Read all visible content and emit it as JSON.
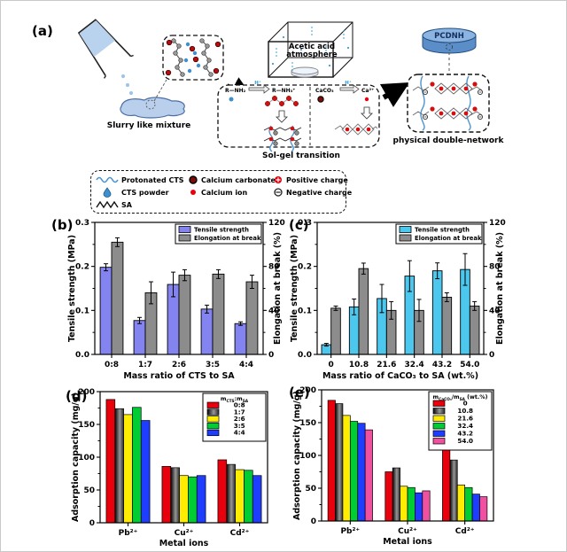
{
  "panels": {
    "a": "(a)",
    "b": "(b)",
    "c": "(c)",
    "d": "(d)",
    "e": "(e)"
  },
  "schematic": {
    "slurry_label": "Slurry like mixture",
    "chamber_label_1": "Acetic acid",
    "chamber_label_2": "atmosphere",
    "solgel_label": "Sol-gel transition",
    "network_label": "physical double-network",
    "disc_label": "PCDNH",
    "reaction1": {
      "reactant": "R—NH₂",
      "condition": "H⁺",
      "product": "R—NH₃⁺"
    },
    "reaction2": {
      "reactant": "CaCO₃",
      "condition": "H⁺",
      "product": "Ca²⁺"
    }
  },
  "legend": {
    "items": [
      {
        "icon": "protonated-cts-wave",
        "label": "Protonated CTS"
      },
      {
        "icon": "cts-powder-droplet",
        "label": "CTS powder"
      },
      {
        "icon": "sa-zigzag",
        "label": "SA"
      },
      {
        "icon": "calcium-carbonate-circle",
        "label": "Calcium carbonate"
      },
      {
        "icon": "calcium-ion-dot",
        "label": "Calcium ion"
      },
      {
        "icon": "positive-charge",
        "label": "Positive charge"
      },
      {
        "icon": "negative-charge",
        "label": "Negative charge"
      }
    ]
  },
  "chart_data": [
    {
      "id": "b",
      "type": "bar-dual",
      "panel": "(b)",
      "categories": [
        "0:8",
        "1:7",
        "2:6",
        "3:5",
        "4:4"
      ],
      "xlabel": "Mass ratio of CTS to SA",
      "left_axis": {
        "label": "Tensile strength (MPa)",
        "range": [
          0,
          0.3
        ],
        "ticks": [
          "0.0",
          "0.1",
          "0.2",
          "0.3"
        ]
      },
      "right_axis": {
        "label": "Elongation at break (%)",
        "range": [
          0,
          120
        ],
        "ticks": [
          "0",
          "40",
          "80",
          "120"
        ]
      },
      "legend_position": "top-right",
      "series": [
        {
          "name": "Tensile strength",
          "axis": "left",
          "color": "#8484f0",
          "values": [
            0.198,
            0.077,
            0.159,
            0.103,
            0.07
          ],
          "errors": [
            0.008,
            0.007,
            0.028,
            0.009,
            0.004
          ]
        },
        {
          "name": "Elongation at break",
          "axis": "right",
          "color": "#8c8c8c",
          "values": [
            102,
            56,
            72,
            73,
            66
          ],
          "errors": [
            4,
            10,
            5,
            4,
            6
          ]
        }
      ]
    },
    {
      "id": "c",
      "type": "bar-dual",
      "panel": "(c)",
      "categories": [
        "0",
        "10.8",
        "21.6",
        "32.4",
        "43.2",
        "54.0"
      ],
      "xlabel": "Mass ratio of CaCO₃ to SA (wt.%)",
      "left_axis": {
        "label": "Tensile strength (MPa)",
        "range": [
          0,
          0.3
        ],
        "ticks": [
          "0.0",
          "0.1",
          "0.2",
          "0.3"
        ]
      },
      "right_axis": {
        "label": "Elongation at break (%)",
        "range": [
          0,
          120
        ],
        "ticks": [
          "0",
          "40",
          "80",
          "120"
        ]
      },
      "legend_position": "top-right",
      "series": [
        {
          "name": "Tensile strength",
          "axis": "left",
          "color": "#4cc8ee",
          "values": [
            0.022,
            0.108,
            0.127,
            0.178,
            0.19,
            0.193
          ],
          "errors": [
            0.003,
            0.018,
            0.032,
            0.035,
            0.018,
            0.036
          ]
        },
        {
          "name": "Elongation at break",
          "axis": "right",
          "color": "#8c8c8c",
          "values": [
            42,
            78,
            40,
            40,
            52,
            44
          ],
          "errors": [
            2,
            5,
            8,
            10,
            4,
            4
          ]
        }
      ]
    },
    {
      "id": "d",
      "type": "bar-grouped",
      "panel": "(d)",
      "categories": [
        "Pb²⁺",
        "Cu²⁺",
        "Cd²⁺"
      ],
      "xlabel": "Metal ions",
      "y_axis": {
        "label": "Adsorption capacity (mg/g)",
        "range": [
          0,
          200
        ],
        "ticks": [
          "0",
          "50",
          "100",
          "150",
          "200"
        ]
      },
      "legend_title": "m{CTS}:m{SA}",
      "series": [
        {
          "name": "0:8",
          "color": "#e8000d",
          "values": [
            188,
            86,
            96
          ]
        },
        {
          "name": "1:7",
          "color": "gradient-black",
          "values": [
            174,
            84,
            89
          ]
        },
        {
          "name": "2:6",
          "color": "#ffec00",
          "values": [
            165,
            72,
            81
          ]
        },
        {
          "name": "3:5",
          "color": "#00cc33",
          "values": [
            176,
            70,
            80
          ]
        },
        {
          "name": "4:4",
          "color": "#1f3dff",
          "values": [
            156,
            72,
            72
          ]
        }
      ]
    },
    {
      "id": "e",
      "type": "bar-grouped",
      "panel": "(e)",
      "categories": [
        "Pb²⁺",
        "Cu²⁺",
        "Cd²⁺"
      ],
      "xlabel": "Metal ions",
      "y_axis": {
        "label": "Adsorption capacity (mg/g)",
        "range": [
          0,
          200
        ],
        "ticks": [
          "0",
          "50",
          "100",
          "150",
          "200"
        ]
      },
      "legend_title": "m{CaCO₃}/m{SA} (wt.%)",
      "series": [
        {
          "name": "0",
          "color": "#e8000d",
          "values": [
            184,
            75,
            115
          ]
        },
        {
          "name": "10.8",
          "color": "gradient-black",
          "values": [
            179,
            81,
            93
          ]
        },
        {
          "name": "21.6",
          "color": "#ffec00",
          "values": [
            161,
            53,
            55
          ]
        },
        {
          "name": "32.4",
          "color": "#00cc33",
          "values": [
            152,
            51,
            51
          ]
        },
        {
          "name": "43.2",
          "color": "#1f3dff",
          "values": [
            149,
            43,
            41
          ]
        },
        {
          "name": "54.0",
          "color": "#f050a0",
          "values": [
            139,
            46,
            37
          ]
        }
      ]
    }
  ]
}
